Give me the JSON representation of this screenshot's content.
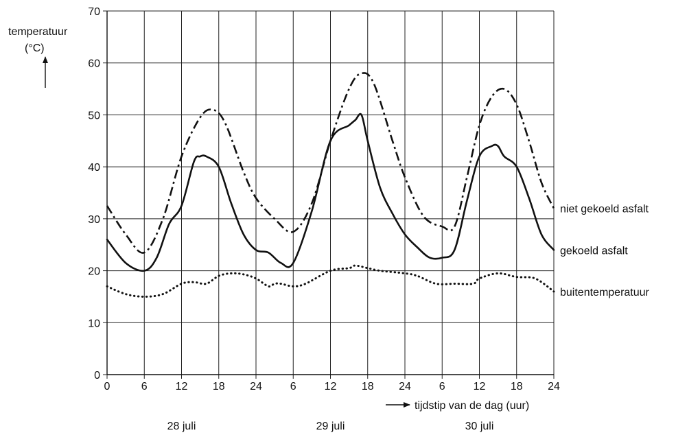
{
  "chart_data": {
    "type": "line",
    "title": "",
    "ylabel": "temperatuur",
    "yunit": "(°C)",
    "xlabel": "tijdstip van de dag (uur)",
    "ylim": [
      0,
      70
    ],
    "yticks": [
      0,
      10,
      20,
      30,
      40,
      50,
      60,
      70
    ],
    "xlim": [
      0,
      72
    ],
    "xtick_labels": [
      "0",
      "6",
      "12",
      "18",
      "24",
      "6",
      "12",
      "18",
      "24",
      "6",
      "12",
      "18",
      "24"
    ],
    "day_labels": [
      "28 juli",
      "29 juli",
      "30 juli"
    ],
    "grid": true,
    "series": [
      {
        "name": "niet gekoeld asfalt",
        "style": "dashdot",
        "x": [
          0,
          3,
          6,
          9,
          12,
          15,
          17,
          19,
          22,
          24,
          27,
          30,
          33,
          36,
          39,
          41,
          43,
          46,
          48,
          51,
          54,
          56,
          58,
          60,
          62,
          64,
          66,
          68,
          70,
          72
        ],
        "y": [
          32.5,
          27,
          23.5,
          30,
          42,
          49.5,
          51,
          48.5,
          39,
          34,
          30,
          27.5,
          33,
          45,
          55,
          58,
          56,
          45,
          38,
          30.5,
          28.5,
          28.5,
          38,
          48,
          53.5,
          55,
          52,
          45,
          37,
          32
        ]
      },
      {
        "name": "gekoeld asfalt",
        "style": "solid",
        "x": [
          0,
          3,
          6,
          8,
          10,
          12,
          14,
          15,
          16,
          18,
          20,
          22,
          24,
          26,
          28,
          30,
          33,
          36,
          39,
          40,
          41,
          42,
          44,
          46,
          48,
          50,
          52,
          54,
          56,
          58,
          60,
          62,
          63,
          64,
          66,
          68,
          70,
          72
        ],
        "y": [
          26,
          21.5,
          20,
          22.5,
          29,
          32.5,
          41,
          42,
          42,
          40,
          33,
          27,
          24,
          23.5,
          21.5,
          21.5,
          31.5,
          45,
          48,
          49,
          50,
          45,
          36,
          31,
          27,
          24.5,
          22.5,
          22.5,
          24,
          33.5,
          42,
          44,
          44,
          42,
          40,
          34,
          27,
          24
        ]
      },
      {
        "name": "buitentemperatuur",
        "style": "dotted",
        "x": [
          0,
          3,
          6,
          9,
          12,
          14,
          16,
          18,
          20,
          22,
          24,
          26,
          27,
          28,
          30,
          32,
          36,
          39,
          40,
          42,
          44,
          48,
          50,
          53,
          56,
          59,
          60,
          63,
          66,
          69,
          72
        ],
        "y": [
          17,
          15.5,
          15,
          15.5,
          17.5,
          17.8,
          17.5,
          19,
          19.5,
          19.3,
          18.5,
          17,
          17.5,
          17.5,
          17,
          17.5,
          20,
          20.5,
          21,
          20.5,
          20,
          19.5,
          19,
          17.5,
          17.5,
          17.5,
          18.5,
          19.5,
          18.8,
          18.5,
          16
        ]
      }
    ]
  }
}
